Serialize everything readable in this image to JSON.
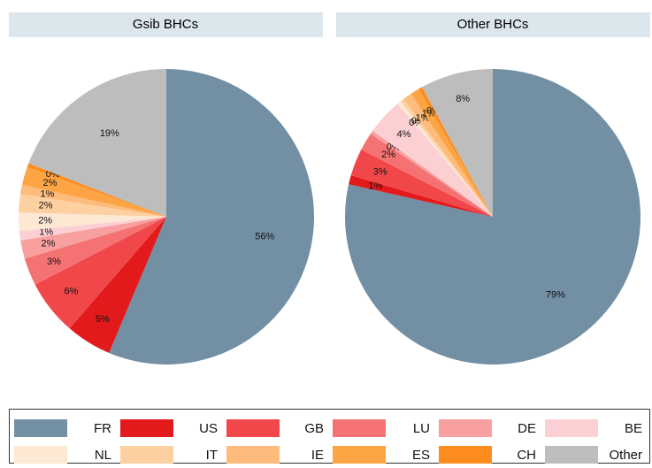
{
  "chart_data": [
    {
      "type": "pie",
      "title": "Gsib BHCs",
      "categories": [
        "FR",
        "US",
        "GB",
        "LU",
        "DE",
        "BE",
        "NL",
        "IT",
        "IE",
        "ES",
        "CH",
        "Other"
      ],
      "values": [
        56,
        5,
        6,
        3,
        2,
        1,
        2,
        2,
        1,
        2,
        0.4,
        19
      ],
      "value_labels": [
        "56%",
        "5%",
        "6%",
        "3%",
        "2%",
        "1%",
        "2%",
        "2%",
        "1%",
        "2%",
        "0%",
        "19%"
      ],
      "colors": [
        "#738fa4",
        "#e31a1c",
        "#f2474a",
        "#f47272",
        "#f89f9f",
        "#fcd0d3",
        "#fde8d4",
        "#fdd0a2",
        "#fdbb7c",
        "#fda445",
        "#fd8c1c",
        "#bdbdbd"
      ]
    },
    {
      "type": "pie",
      "title": "Other BHCs",
      "categories": [
        "FR",
        "US",
        "GB",
        "LU",
        "DE",
        "BE",
        "NL",
        "IT",
        "IE",
        "ES",
        "CH",
        "Other"
      ],
      "values": [
        79,
        1,
        3,
        2,
        0.4,
        4,
        0.4,
        0.4,
        1,
        1,
        0.4,
        8
      ],
      "value_labels": [
        "79%",
        "1%",
        "3%",
        "2%",
        "0%",
        "4%",
        "0%",
        "0%",
        "1%",
        "1%",
        "0%",
        "8%"
      ],
      "colors": [
        "#738fa4",
        "#e31a1c",
        "#f2474a",
        "#f47272",
        "#f89f9f",
        "#fcd0d3",
        "#fde8d4",
        "#fdd0a2",
        "#fdbb7c",
        "#fda445",
        "#fd8c1c",
        "#bdbdbd"
      ]
    }
  ]
}
